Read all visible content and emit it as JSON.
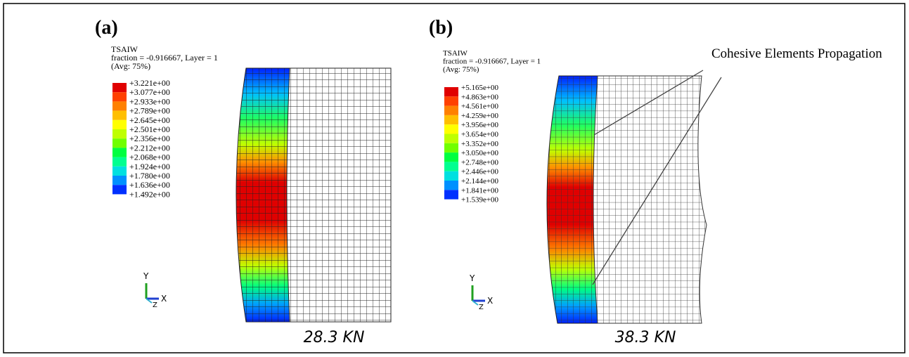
{
  "panels": [
    {
      "label": "(a)",
      "legend": {
        "title": "TSAIW",
        "subtitle": "fraction = -0.916667, Layer = 1",
        "average": "(Avg: 75%)",
        "values": [
          "+3.221e+00",
          "+3.077e+00",
          "+2.933e+00",
          "+2.789e+00",
          "+2.645e+00",
          "+2.501e+00",
          "+2.356e+00",
          "+2.212e+00",
          "+2.068e+00",
          "+1.924e+00",
          "+1.780e+00",
          "+1.636e+00",
          "+1.492e+00"
        ]
      },
      "axes": {
        "y": "Y",
        "z": "Z",
        "x": "X"
      },
      "load": "28.3 KN"
    },
    {
      "label": "(b)",
      "legend": {
        "title": "TSAIW",
        "subtitle": "fraction = -0.916667, Layer = 1",
        "average": "(Avg: 75%)",
        "values": [
          "+5.165e+00",
          "+4.863e+00",
          "+4.561e+00",
          "+4.259e+00",
          "+3.956e+00",
          "+3.654e+00",
          "+3.352e+00",
          "+3.050e+00",
          "+2.748e+00",
          "+2.446e+00",
          "+2.144e+00",
          "+1.841e+00",
          "+1.539e+00"
        ]
      },
      "axes": {
        "y": "Y",
        "z": "Z",
        "x": "X"
      },
      "load": "38.3 KN"
    }
  ],
  "annotation": "Cohesive Elements Propagation"
}
